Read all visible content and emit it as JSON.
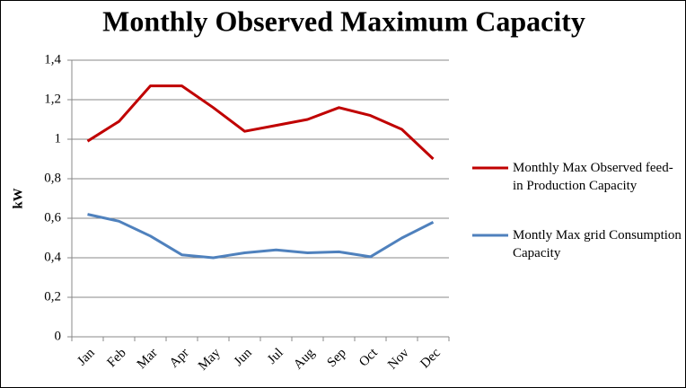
{
  "chart_data": {
    "type": "line",
    "title": "Monthly Observed Maximum Capacity",
    "y_label": "kW",
    "categories": [
      "Jan",
      "Feb",
      "Mar",
      "Apr",
      "May",
      "Jun",
      "Jul",
      "Aug",
      "Sep",
      "Oct",
      "Nov",
      "Dec"
    ],
    "series": [
      {
        "name": "Monthly Max Observed feed-in Production Capacity",
        "color": "#c00000",
        "values": [
          0.99,
          1.09,
          1.27,
          1.27,
          1.16,
          1.04,
          1.07,
          1.1,
          1.16,
          1.12,
          1.05,
          0.9
        ]
      },
      {
        "name": "Montly Max grid Consumption Capacity",
        "color": "#4f81bd",
        "values": [
          0.62,
          0.585,
          0.51,
          0.415,
          0.4,
          0.425,
          0.44,
          0.425,
          0.43,
          0.405,
          0.5,
          0.58
        ]
      }
    ],
    "ylim": [
      0,
      1.4
    ],
    "yticks": [
      0,
      {
        "value": 0.2,
        "label": "0,2"
      },
      {
        "value": 0.4,
        "label": "0,4"
      },
      {
        "value": 0.6,
        "label": "0,6"
      },
      {
        "value": 0.8,
        "label": "0,8"
      },
      1,
      {
        "value": 1.2,
        "label": "1,2"
      },
      {
        "value": 1.4,
        "label": "1,4"
      }
    ],
    "grid": true,
    "legend": "right"
  }
}
